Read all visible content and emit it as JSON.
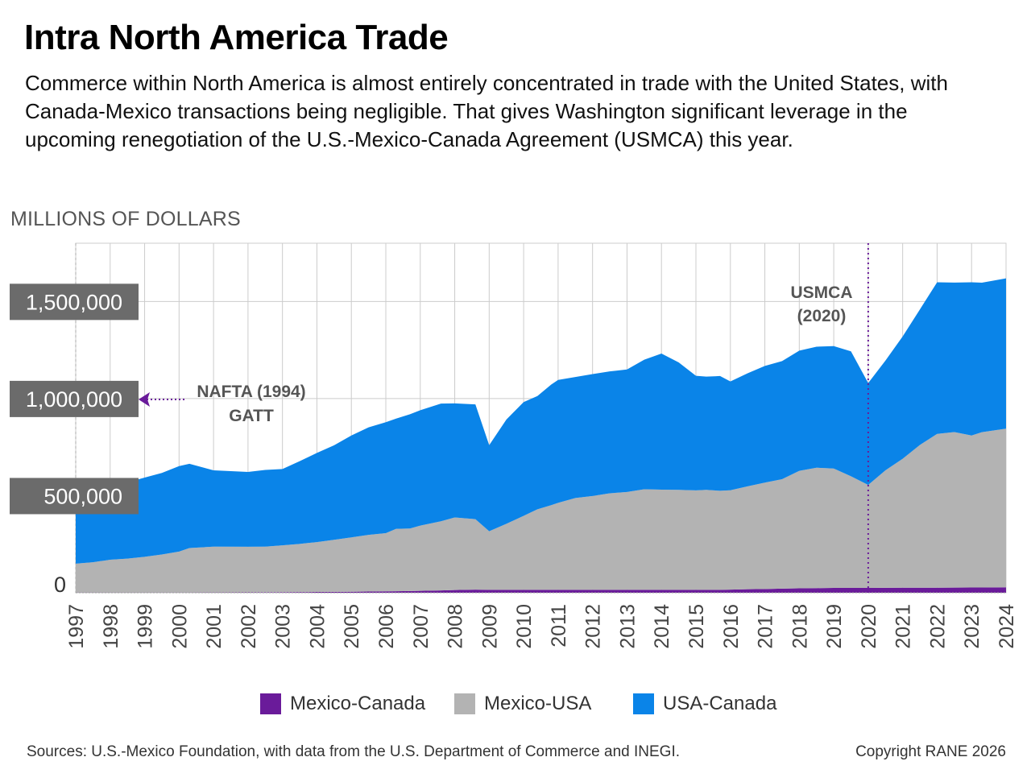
{
  "title": "Intra North America Trade",
  "subtitle": "Commerce within North America is almost entirely concentrated in trade with the United States, with Canada-Mexico transactions being negligible. That gives Washington significant leverage in the upcoming renegotiation of the U.S.-Mexico-Canada Agreement (USMCA) this year.",
  "unit_label": "MILLIONS OF DOLLARS",
  "source": "Sources: U.S.-Mexico Foundation, with data from the U.S. Department of Commerce and INEGI.",
  "copyright": "Copyright RANE 2026",
  "colors": {
    "mexico_canada": "#6a1b9a",
    "mexico_usa": "#b3b3b3",
    "usa_canada": "#0a84e8",
    "tick_box": "#6b6b6b",
    "grid": "#cccccc",
    "annotation_line": "#6a1b9a"
  },
  "chart_data": {
    "type": "area",
    "stacked": true,
    "x": [
      "1997",
      "1997.5",
      "1998",
      "1998.5",
      "1999",
      "1999.5",
      "2000",
      "2000.3",
      "2001",
      "2002",
      "2002.5",
      "2003",
      "2003.5",
      "2004",
      "2004.5",
      "2005",
      "2005.5",
      "2006",
      "2006.3",
      "2006.7",
      "2007",
      "2007.6",
      "2008",
      "2008.6",
      "2009",
      "2009.5",
      "2010",
      "2010.4",
      "2010.8",
      "2011",
      "2011.5",
      "2012",
      "2012.5",
      "2013",
      "2013.5",
      "2014",
      "2014.5",
      "2015",
      "2015.3",
      "2015.7",
      "2016",
      "2016.5",
      "2017",
      "2017.5",
      "2018",
      "2018.5",
      "2019",
      "2019.5",
      "2020",
      "2020.5",
      "2021",
      "2021.5",
      "2022",
      "2022.5",
      "2023",
      "2023.3",
      "2024"
    ],
    "xlim": [
      1997,
      2024
    ],
    "ylim": [
      0,
      1800000
    ],
    "ytick_values": [
      0,
      500000,
      1000000,
      1500000
    ],
    "ytick_labels": [
      "0",
      "500,000",
      "1,000,000",
      "1,500,000"
    ],
    "xtick_labels": [
      "1997",
      "1998",
      "1999",
      "2000",
      "2001",
      "2002",
      "2003",
      "2004",
      "2005",
      "2006",
      "2007",
      "2008",
      "2009",
      "2010",
      "2011",
      "2012",
      "2013",
      "2014",
      "2015",
      "2016",
      "2017",
      "2018",
      "2019",
      "2020",
      "2021",
      "2022",
      "2023",
      "2024"
    ],
    "grid": true,
    "series": [
      {
        "name": "Mexico-Canada",
        "color": "#6a1b9a",
        "values": [
          1000,
          1000,
          1000,
          1000,
          1000,
          1000,
          1000,
          1000,
          1500,
          2000,
          2500,
          3000,
          3500,
          4000,
          4500,
          5000,
          6000,
          7000,
          8000,
          9000,
          10000,
          12000,
          14000,
          16000,
          15000,
          15000,
          15000,
          15000,
          15000,
          15000,
          15000,
          15000,
          15000,
          15000,
          15000,
          15000,
          15000,
          15000,
          15000,
          15000,
          16000,
          18000,
          19000,
          21000,
          23000,
          24000,
          25000,
          25000,
          25000,
          25500,
          26000,
          26000,
          26000,
          26500,
          27000,
          27000,
          28000
        ]
      },
      {
        "name": "Mexico-USA",
        "color": "#b3b3b3",
        "values": [
          149000,
          156000,
          169000,
          175000,
          184000,
          196000,
          211000,
          229000,
          236000,
          235000,
          235000,
          241000,
          248000,
          257000,
          268000,
          280000,
          292000,
          300000,
          321000,
          322000,
          336000,
          356000,
          374000,
          363000,
          302000,
          340000,
          381000,
          415000,
          436000,
          448000,
          473000,
          483000,
          497000,
          504000,
          518000,
          516000,
          515000,
          512000,
          515000,
          510000,
          512000,
          530000,
          548000,
          564000,
          605000,
          620000,
          615000,
          575000,
          530000,
          605000,
          664000,
          735000,
          792000,
          801000,
          783000,
          800000,
          817000
        ]
      },
      {
        "name": "USA-Canada",
        "color": "#0a84e8",
        "values": [
          345000,
          362000,
          381000,
          392000,
          408000,
          420000,
          440000,
          434000,
          393000,
          385000,
          395000,
          393000,
          426000,
          459000,
          487000,
          525000,
          554000,
          571000,
          568000,
          588000,
          594000,
          606000,
          587000,
          591000,
          443000,
          537000,
          586000,
          583000,
          621000,
          633000,
          623000,
          628000,
          628000,
          631000,
          667000,
          701000,
          656000,
          590000,
          583000,
          591000,
          560000,
          582000,
          601000,
          608000,
          619000,
          623000,
          630000,
          643000,
          525000,
          565000,
          630000,
          698000,
          781000,
          770000,
          789000,
          770000,
          774000
        ]
      }
    ],
    "annotations": [
      {
        "label_line1": "NAFTA (1994)",
        "label_line2": "GATT",
        "type": "arrow-left"
      },
      {
        "label_line1": "USMCA",
        "label_line2": "(2020)",
        "type": "vertical-line",
        "x": 2020
      }
    ],
    "legend_position": "bottom"
  }
}
